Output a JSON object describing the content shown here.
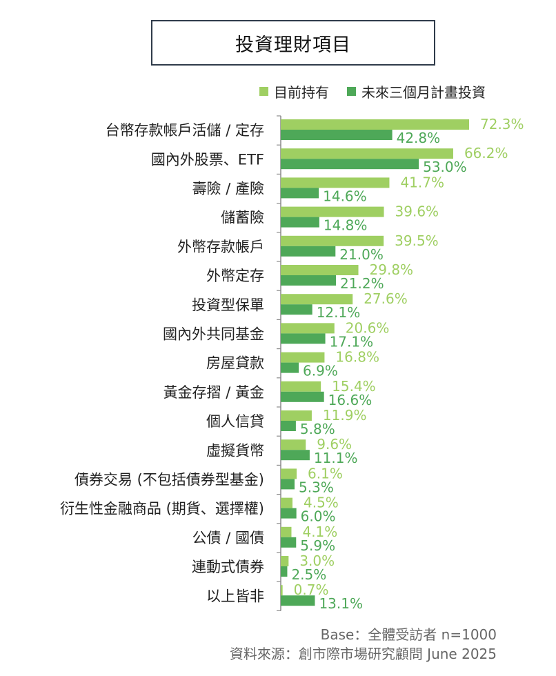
{
  "chart_data": {
    "type": "bar",
    "orientation": "horizontal",
    "title": "投資理財項目",
    "categories": [
      "台幣存款帳戶活儲 / 定存",
      "國內外股票、ETF",
      "壽險 / 產險",
      "儲蓄險",
      "外幣存款帳戶",
      "外幣定存",
      "投資型保單",
      "國內外共同基金",
      "房屋貸款",
      "黃金存摺 / 黃金",
      "個人信貸",
      "虛擬貨幣",
      "債券交易 (不包括債券型基金)",
      "衍生性金融商品 (期貨、選擇權)",
      "公債 / 國債",
      "連動式債券",
      "以上皆非"
    ],
    "series": [
      {
        "name": "目前持有",
        "color": "#9fcf62",
        "values": [
          72.3,
          66.2,
          41.7,
          39.6,
          39.5,
          29.8,
          27.6,
          20.6,
          16.8,
          15.4,
          11.9,
          9.6,
          6.1,
          4.5,
          4.1,
          3.0,
          0.7
        ],
        "labels": [
          "72.3%",
          "66.2%",
          "41.7%",
          "39.6%",
          "39.5%",
          "29.8%",
          "27.6%",
          "20.6%",
          "16.8%",
          "15.4%",
          "11.9%",
          "9.6%",
          "6.1%",
          "4.5%",
          "4.1%",
          "3.0%",
          "0.7%"
        ]
      },
      {
        "name": "未來三個月計畫投資",
        "color": "#4ea858",
        "values": [
          42.8,
          53.0,
          14.6,
          14.8,
          21.0,
          21.2,
          12.1,
          17.1,
          6.9,
          16.6,
          5.8,
          11.1,
          5.3,
          6.0,
          5.9,
          2.5,
          13.1
        ],
        "labels": [
          "42.8%",
          "53.0%",
          "14.6%",
          "14.8%",
          "21.0%",
          "21.2%",
          "12.1%",
          "17.1%",
          "6.9%",
          "16.6%",
          "5.8%",
          "11.1%",
          "5.3%",
          "6.0%",
          "5.9%",
          "2.5%",
          "13.1%"
        ]
      }
    ],
    "xlim": [
      0,
      72.3
    ],
    "legend_position": "top-right",
    "grid": false
  },
  "footer": {
    "base": "Base：全體受訪者 n=1000",
    "source": "資料來源：創市際市場研究顧問 June 2025"
  }
}
